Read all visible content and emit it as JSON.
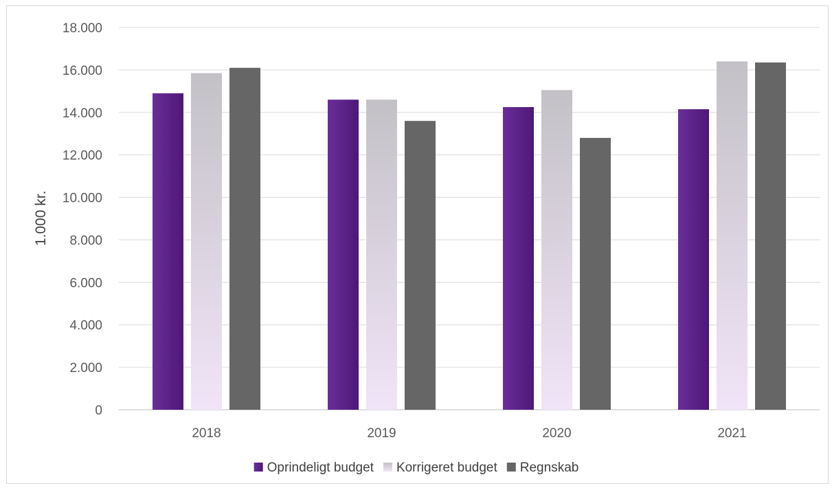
{
  "chart_data": {
    "type": "bar",
    "title": "",
    "xlabel": "",
    "ylabel": "1.000 kr.",
    "categories": [
      "2018",
      "2019",
      "2020",
      "2021"
    ],
    "ylim": [
      0,
      18000
    ],
    "yticks": [
      0,
      2000,
      4000,
      6000,
      8000,
      10000,
      12000,
      14000,
      16000,
      18000
    ],
    "ytick_labels": [
      "0",
      "2.000",
      "4.000",
      "6.000",
      "8.000",
      "10.000",
      "12.000",
      "14.000",
      "16.000",
      "18.000"
    ],
    "grid": true,
    "legend_position": "bottom",
    "series": [
      {
        "name": "Oprindeligt budget",
        "color": "#5b2085",
        "values": [
          14900,
          14600,
          14250,
          14150
        ]
      },
      {
        "name": "Korrigeret budget",
        "color": "#ccc3d9",
        "values": [
          15850,
          14600,
          15050,
          16400
        ]
      },
      {
        "name": "Regnskab",
        "color": "#666666",
        "values": [
          16100,
          13600,
          12800,
          16350
        ]
      }
    ]
  }
}
